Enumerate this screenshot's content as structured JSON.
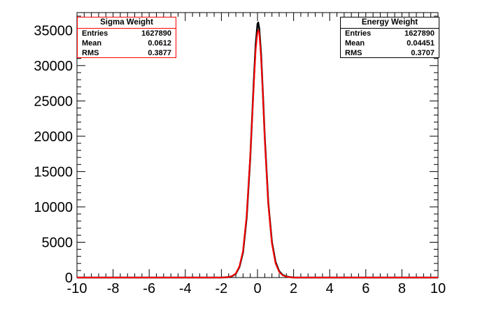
{
  "chart_data": {
    "type": "line",
    "xlim": [
      -10,
      10
    ],
    "ylim": [
      0,
      37500
    ],
    "x_ticks": [
      "-10",
      "-8",
      "-6",
      "-4",
      "-2",
      "0",
      "2",
      "4",
      "6",
      "8",
      "10"
    ],
    "y_ticks": [
      "0",
      "5000",
      "10000",
      "15000",
      "20000",
      "25000",
      "30000",
      "35000"
    ],
    "grid": false,
    "series": [
      {
        "name": "Energy Weight",
        "color": "#000000",
        "x": [
          -10,
          -2,
          -1.6,
          -1.4,
          -1.2,
          -1.0,
          -0.8,
          -0.6,
          -0.4,
          -0.2,
          -0.1,
          0.0,
          0.04,
          0.1,
          0.2,
          0.3,
          0.4,
          0.6,
          0.8,
          1.0,
          1.2,
          1.4,
          1.6,
          1.8,
          2.0,
          10
        ],
        "y": [
          0,
          0,
          60,
          200,
          550,
          1500,
          3600,
          8500,
          17000,
          28000,
          33000,
          35900,
          36100,
          35200,
          31500,
          26000,
          20000,
          10500,
          5000,
          2200,
          900,
          350,
          150,
          60,
          0,
          0
        ]
      },
      {
        "name": "Sigma Weight",
        "color": "#ff0000",
        "x": [
          -10,
          -2,
          -1.6,
          -1.4,
          -1.2,
          -1.0,
          -0.8,
          -0.6,
          -0.4,
          -0.2,
          -0.1,
          0.0,
          0.06,
          0.1,
          0.2,
          0.3,
          0.4,
          0.6,
          0.8,
          1.0,
          1.2,
          1.4,
          1.6,
          1.8,
          2.0,
          10
        ],
        "y": [
          0,
          0,
          70,
          220,
          600,
          1600,
          3800,
          8800,
          17200,
          27500,
          32200,
          34700,
          35000,
          34500,
          31000,
          25800,
          19800,
          10300,
          4800,
          2000,
          800,
          300,
          130,
          50,
          0,
          0
        ]
      }
    ]
  },
  "stats": {
    "sigma": {
      "title": "Sigma Weight",
      "entries_label": "Entries",
      "entries": "1627890",
      "mean_label": "Mean",
      "mean": "0.0612",
      "rms_label": "RMS",
      "rms": "0.3877",
      "color": "#ff0000"
    },
    "energy": {
      "title": "Energy Weight",
      "entries_label": "Entries",
      "entries": "1627890",
      "mean_label": "Mean",
      "mean": "0.04451",
      "rms_label": "RMS",
      "rms": "0.3707",
      "color": "#000000"
    }
  }
}
